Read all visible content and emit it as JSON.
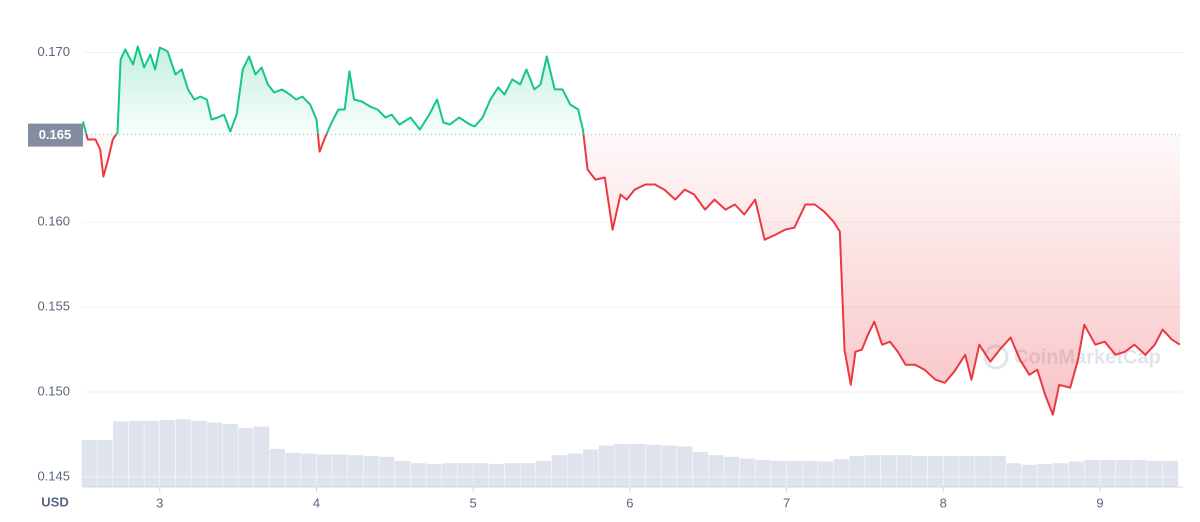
{
  "chart_data": {
    "type": "line",
    "x": [
      2.51,
      2.54,
      2.59,
      2.62,
      2.64,
      2.67,
      2.7,
      2.73,
      2.75,
      2.78,
      2.83,
      2.86,
      2.9,
      2.94,
      2.97,
      3.0,
      3.05,
      3.1,
      3.14,
      3.18,
      3.22,
      3.26,
      3.3,
      3.33,
      3.37,
      3.41,
      3.45,
      3.49,
      3.53,
      3.57,
      3.61,
      3.65,
      3.69,
      3.73,
      3.78,
      3.83,
      3.87,
      3.91,
      3.96,
      4.0,
      4.02,
      4.05,
      4.09,
      4.14,
      4.18,
      4.21,
      4.24,
      4.29,
      4.34,
      4.39,
      4.44,
      4.48,
      4.53,
      4.6,
      4.66,
      4.72,
      4.77,
      4.81,
      4.85,
      4.91,
      4.98,
      5.01,
      5.06,
      5.11,
      5.16,
      5.2,
      5.25,
      5.3,
      5.34,
      5.39,
      5.43,
      5.47,
      5.52,
      5.57,
      5.62,
      5.67,
      5.7,
      5.73,
      5.78,
      5.84,
      5.89,
      5.94,
      5.98,
      6.03,
      6.1,
      6.16,
      6.22,
      6.29,
      6.35,
      6.41,
      6.48,
      6.54,
      6.61,
      6.67,
      6.73,
      6.8,
      6.86,
      6.93,
      6.99,
      7.05,
      7.12,
      7.18,
      7.24,
      7.3,
      7.34,
      7.37,
      7.41,
      7.44,
      7.48,
      7.52,
      7.56,
      7.61,
      7.66,
      7.71,
      7.76,
      7.82,
      7.88,
      7.95,
      8.01,
      8.07,
      8.14,
      8.18,
      8.23,
      8.3,
      8.36,
      8.43,
      8.49,
      8.55,
      8.6,
      8.65,
      8.7,
      8.74,
      8.81,
      8.86,
      8.9,
      8.97,
      9.03,
      9.1,
      9.16,
      9.22,
      9.29,
      9.35,
      9.4,
      9.46,
      9.51
    ],
    "values": [
      0.16593,
      0.16487,
      0.16487,
      0.16428,
      0.16269,
      0.16369,
      0.16487,
      0.16528,
      0.16959,
      0.17018,
      0.16929,
      0.17035,
      0.16911,
      0.16988,
      0.169,
      0.17029,
      0.17006,
      0.1687,
      0.169,
      0.16782,
      0.16723,
      0.1674,
      0.16723,
      0.16605,
      0.16617,
      0.16634,
      0.16534,
      0.16634,
      0.169,
      0.16976,
      0.1687,
      0.16911,
      0.16811,
      0.16764,
      0.16782,
      0.16752,
      0.16723,
      0.1674,
      0.16693,
      0.16605,
      0.16416,
      0.16487,
      0.16575,
      0.16664,
      0.16664,
      0.16888,
      0.16723,
      0.16711,
      0.16682,
      0.16664,
      0.16617,
      0.16634,
      0.16575,
      0.16617,
      0.16546,
      0.16634,
      0.16723,
      0.16587,
      0.16575,
      0.16617,
      0.16575,
      0.16564,
      0.16617,
      0.16723,
      0.16794,
      0.16752,
      0.16841,
      0.16811,
      0.169,
      0.16782,
      0.16811,
      0.16976,
      0.16782,
      0.16782,
      0.16693,
      0.16664,
      0.16546,
      0.1631,
      0.16251,
      0.16263,
      0.15956,
      0.16163,
      0.16133,
      0.16192,
      0.16222,
      0.16222,
      0.16192,
      0.16133,
      0.16192,
      0.16163,
      0.16074,
      0.16133,
      0.16074,
      0.16104,
      0.16045,
      0.16133,
      0.15897,
      0.15927,
      0.15956,
      0.15968,
      0.16104,
      0.16104,
      0.16062,
      0.16003,
      0.15945,
      0.15249,
      0.15042,
      0.15237,
      0.15249,
      0.15337,
      0.15414,
      0.15278,
      0.15296,
      0.15237,
      0.1516,
      0.1516,
      0.15131,
      0.15072,
      0.15054,
      0.15119,
      0.15219,
      0.15072,
      0.15278,
      0.15178,
      0.15249,
      0.1532,
      0.1519,
      0.15101,
      0.15131,
      0.14983,
      0.14866,
      0.15042,
      0.15025,
      0.1519,
      0.15396,
      0.15278,
      0.15296,
      0.15219,
      0.15237,
      0.15278,
      0.15219,
      0.15278,
      0.15367,
      0.15308,
      0.15278
    ],
    "baseline": {
      "value": 0.16516,
      "label": "0.165"
    },
    "xlim": [
      2.51,
      9.53
    ],
    "xticks": [
      3,
      4,
      5,
      6,
      7,
      8,
      9
    ],
    "ylim": [
      0.1444,
      0.1725
    ],
    "yticks": [
      0.145,
      {
        "value": 0.15,
        "label": "0.150"
      },
      0.155,
      {
        "value": 0.16,
        "label": "0.160"
      },
      {
        "value": 0.17,
        "label": "0.170"
      }
    ],
    "y_unit": "USD",
    "grid": true,
    "colors": {
      "up": "#16c784",
      "down": "#ea3943"
    },
    "watermark": "CoinMarketCap",
    "volume": {
      "color": "#dfe3ee",
      "ylim": [
        0,
        100
      ],
      "x": [
        2.55,
        2.65,
        2.75,
        2.85,
        2.95,
        3.05,
        3.15,
        3.25,
        3.35,
        3.45,
        3.55,
        3.65,
        3.75,
        3.85,
        3.95,
        4.05,
        4.15,
        4.25,
        4.35,
        4.45,
        4.55,
        4.65,
        4.75,
        4.85,
        4.95,
        5.05,
        5.15,
        5.25,
        5.35,
        5.45,
        5.55,
        5.65,
        5.75,
        5.85,
        5.95,
        6.05,
        6.15,
        6.25,
        6.35,
        6.45,
        6.55,
        6.65,
        6.75,
        6.85,
        6.95,
        7.05,
        7.15,
        7.25,
        7.35,
        7.45,
        7.55,
        7.65,
        7.75,
        7.85,
        7.95,
        8.05,
        8.15,
        8.25,
        8.35,
        8.45,
        8.55,
        8.65,
        8.75,
        8.85,
        8.95,
        9.05,
        9.15,
        9.25,
        9.35,
        9.45
      ],
      "values": [
        59,
        59,
        82,
        83,
        83,
        84,
        85,
        83,
        81,
        79,
        74,
        76,
        48,
        43,
        42,
        41,
        41,
        40,
        39,
        38,
        33,
        30,
        29,
        30,
        30,
        30,
        29,
        30,
        30,
        33,
        40,
        42,
        47,
        52,
        54,
        54,
        53,
        52,
        51,
        44,
        40,
        38,
        36,
        34,
        33,
        33,
        33,
        32,
        35,
        39,
        40,
        40,
        40,
        39,
        39,
        39,
        39,
        39,
        39,
        30,
        28,
        29,
        30,
        32,
        34,
        34,
        34,
        34,
        33,
        33
      ]
    }
  }
}
